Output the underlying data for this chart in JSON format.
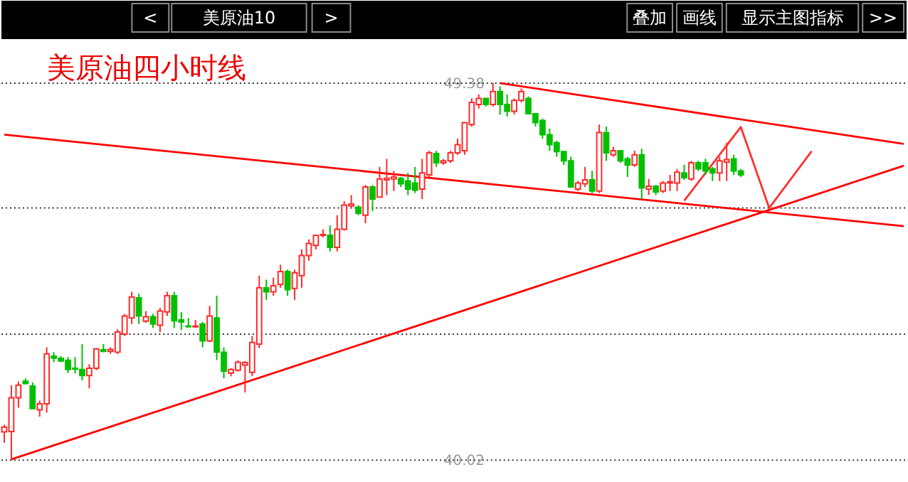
{
  "chart_data": {
    "type": "candlestick",
    "title": "美原油四小时线",
    "categories": [
      null,
      null,
      null,
      null,
      null,
      null,
      null,
      null,
      null,
      null,
      null,
      null,
      null,
      null,
      null,
      null,
      null,
      null,
      null,
      null,
      null,
      null,
      null,
      null,
      null,
      null,
      null,
      null,
      null,
      null,
      null,
      null,
      null,
      null,
      null,
      null,
      null,
      null,
      null,
      null,
      null,
      null,
      null,
      null,
      null,
      null,
      null,
      null,
      null,
      null,
      null,
      null,
      null,
      null,
      null,
      null,
      null,
      null,
      null,
      null,
      null,
      null,
      null,
      null,
      null,
      null,
      null,
      null,
      null,
      null,
      null,
      null,
      null,
      null,
      null,
      null,
      null,
      null,
      null,
      null,
      null,
      null,
      null,
      null,
      null,
      null,
      null,
      null,
      null,
      null,
      null,
      null,
      null,
      null,
      null,
      null,
      null,
      null,
      null,
      null,
      null,
      null,
      null,
      null,
      null,
      null,
      null,
      null,
      null,
      null,
      null,
      null,
      null,
      null,
      null,
      null,
      null,
      null,
      null,
      null,
      null,
      null,
      null,
      null,
      null,
      null,
      null,
      null
    ],
    "ohlc": [
      [
        40.72,
        40.9,
        40.45,
        40.84
      ],
      [
        40.73,
        41.88,
        40.02,
        41.57
      ],
      [
        41.57,
        41.97,
        41.32,
        41.88
      ],
      [
        41.98,
        42.05,
        41.9,
        41.92
      ],
      [
        41.86,
        41.95,
        41.3,
        41.3
      ],
      [
        41.27,
        41.5,
        41.1,
        41.42
      ],
      [
        41.42,
        42.82,
        41.2,
        42.66
      ],
      [
        42.6,
        42.7,
        42.45,
        42.55
      ],
      [
        42.55,
        42.6,
        42.45,
        42.48
      ],
      [
        42.5,
        42.58,
        42.18,
        42.27
      ],
      [
        42.3,
        42.58,
        42.17,
        42.28
      ],
      [
        42.27,
        42.9,
        42.0,
        42.12
      ],
      [
        42.12,
        42.4,
        41.8,
        42.3
      ],
      [
        42.3,
        42.8,
        42.25,
        42.78
      ],
      [
        42.76,
        42.9,
        42.7,
        42.72
      ],
      [
        42.72,
        42.82,
        42.66,
        42.77
      ],
      [
        42.7,
        43.27,
        42.65,
        43.2
      ],
      [
        43.15,
        43.65,
        43.1,
        43.6
      ],
      [
        43.55,
        44.2,
        43.4,
        44.07
      ],
      [
        44.05,
        44.15,
        43.4,
        43.6
      ],
      [
        43.47,
        43.72,
        43.43,
        43.58
      ],
      [
        43.58,
        43.65,
        43.3,
        43.4
      ],
      [
        43.37,
        43.8,
        43.2,
        43.72
      ],
      [
        43.7,
        44.2,
        43.6,
        44.1
      ],
      [
        44.1,
        44.2,
        43.3,
        43.48
      ],
      [
        43.5,
        43.7,
        43.25,
        43.45
      ],
      [
        43.35,
        43.55,
        43.32,
        43.33
      ],
      [
        43.33,
        43.5,
        43.3,
        43.35
      ],
      [
        43.4,
        43.45,
        42.82,
        42.98
      ],
      [
        42.98,
        43.85,
        42.95,
        43.6
      ],
      [
        43.55,
        44.1,
        42.5,
        42.7
      ],
      [
        42.7,
        42.82,
        42.05,
        42.23
      ],
      [
        42.18,
        42.3,
        42.1,
        42.27
      ],
      [
        42.25,
        42.5,
        42.22,
        42.45
      ],
      [
        42.38,
        42.48,
        41.7,
        42.44
      ],
      [
        42.2,
        43.1,
        42.1,
        42.94
      ],
      [
        42.9,
        44.6,
        42.8,
        44.3
      ],
      [
        44.3,
        44.5,
        44.0,
        44.2
      ],
      [
        44.2,
        44.55,
        44.1,
        44.35
      ],
      [
        44.38,
        44.87,
        44.3,
        44.7
      ],
      [
        44.7,
        44.75,
        44.1,
        44.25
      ],
      [
        44.28,
        44.75,
        44.0,
        44.67
      ],
      [
        44.6,
        45.25,
        44.3,
        45.1
      ],
      [
        45.1,
        45.5,
        44.97,
        45.4
      ],
      [
        45.35,
        45.6,
        45.25,
        45.6
      ],
      [
        45.6,
        45.75,
        45.55,
        45.62
      ],
      [
        45.6,
        45.85,
        45.2,
        45.3
      ],
      [
        45.3,
        46.1,
        45.2,
        45.75
      ],
      [
        45.75,
        46.45,
        45.72,
        46.35
      ],
      [
        46.33,
        46.6,
        46.3,
        46.38
      ],
      [
        46.3,
        46.35,
        46.1,
        46.15
      ],
      [
        46.1,
        46.85,
        45.9,
        46.8
      ],
      [
        46.8,
        46.85,
        46.2,
        46.5
      ],
      [
        46.55,
        47.3,
        46.55,
        47.0
      ],
      [
        46.98,
        47.5,
        46.6,
        47.02
      ],
      [
        47.0,
        47.2,
        46.7,
        47.05
      ],
      [
        47.02,
        47.05,
        46.8,
        46.88
      ],
      [
        46.95,
        47.15,
        46.6,
        46.75
      ],
      [
        46.9,
        47.3,
        46.65,
        46.72
      ],
      [
        46.75,
        47.5,
        46.5,
        47.15
      ],
      [
        47.1,
        47.7,
        47.05,
        47.65
      ],
      [
        47.63,
        47.7,
        47.3,
        47.4
      ],
      [
        47.4,
        47.5,
        47.35,
        47.45
      ],
      [
        47.45,
        47.7,
        47.4,
        47.65
      ],
      [
        47.65,
        48.0,
        47.6,
        47.85
      ],
      [
        47.7,
        48.4,
        47.6,
        48.4
      ],
      [
        48.35,
        49.0,
        48.3,
        48.9
      ],
      [
        48.85,
        49.1,
        48.75,
        49.0
      ],
      [
        49.0,
        49.0,
        48.8,
        48.85
      ],
      [
        48.85,
        49.38,
        48.8,
        49.17
      ],
      [
        49.17,
        49.3,
        48.6,
        48.85
      ],
      [
        48.85,
        49.1,
        48.55,
        48.68
      ],
      [
        48.68,
        49.0,
        48.6,
        48.95
      ],
      [
        48.95,
        49.25,
        48.9,
        49.17
      ],
      [
        49.0,
        49.05,
        48.6,
        48.62
      ],
      [
        48.62,
        48.62,
        48.3,
        48.4
      ],
      [
        48.45,
        48.5,
        48.0,
        48.1
      ],
      [
        48.1,
        48.25,
        47.7,
        47.85
      ],
      [
        47.9,
        47.95,
        47.55,
        47.68
      ],
      [
        47.68,
        47.7,
        47.35,
        47.45
      ],
      [
        47.45,
        47.55,
        46.8,
        46.8
      ],
      [
        46.75,
        46.95,
        46.7,
        46.9
      ],
      [
        46.88,
        47.3,
        46.8,
        46.98
      ],
      [
        46.98,
        47.2,
        46.65,
        46.7
      ],
      [
        46.7,
        48.35,
        46.65,
        48.15
      ],
      [
        48.15,
        48.3,
        47.45,
        47.65
      ],
      [
        47.6,
        47.8,
        47.55,
        47.7
      ],
      [
        47.7,
        47.7,
        47.4,
        47.45
      ],
      [
        47.5,
        47.55,
        47.05,
        47.35
      ],
      [
        47.35,
        47.7,
        47.3,
        47.6
      ],
      [
        47.6,
        47.75,
        46.5,
        46.78
      ],
      [
        46.75,
        47.0,
        46.6,
        46.82
      ],
      [
        46.82,
        46.85,
        46.6,
        46.68
      ],
      [
        46.7,
        46.95,
        46.65,
        46.9
      ],
      [
        46.9,
        47.1,
        46.7,
        46.93
      ],
      [
        46.9,
        47.25,
        46.7,
        47.17
      ],
      [
        47.15,
        47.35,
        46.98,
        47.03
      ],
      [
        47.0,
        47.45,
        46.95,
        47.4
      ],
      [
        47.4,
        47.45,
        47.2,
        47.25
      ],
      [
        47.4,
        47.5,
        47.1,
        47.2
      ],
      [
        47.25,
        47.3,
        46.95,
        47.15
      ],
      [
        47.15,
        47.55,
        46.95,
        47.45
      ],
      [
        47.42,
        47.9,
        46.95,
        47.48
      ],
      [
        47.5,
        47.6,
        47.1,
        47.2
      ],
      [
        47.2,
        47.25,
        47.05,
        47.1
      ],
      null,
      null,
      null,
      null,
      null,
      null,
      null,
      null,
      null,
      null,
      null,
      null,
      null,
      null,
      null,
      null,
      null,
      null,
      null,
      null,
      null,
      null,
      null
    ],
    "series": [
      {
        "type": "line",
        "color": "#ff0000",
        "values": [
          null,
          null,
          null,
          null,
          null,
          null,
          null,
          null,
          null,
          null,
          null,
          null,
          null,
          null,
          null,
          null,
          null,
          null,
          null,
          null,
          null,
          null,
          null,
          null,
          null,
          null,
          null,
          null,
          null,
          null,
          null,
          null,
          null,
          null,
          null,
          null,
          null,
          null,
          null,
          null,
          null,
          null,
          null,
          null,
          null,
          null,
          null,
          null,
          null,
          null,
          null,
          null,
          null,
          null,
          null,
          null,
          null,
          null,
          null,
          null,
          null,
          null,
          null,
          null,
          null,
          null,
          null,
          null,
          null,
          null,
          49.38,
          null,
          null,
          null,
          null,
          null,
          null,
          null,
          null,
          null,
          null,
          null,
          null,
          null,
          null,
          null,
          null,
          null,
          null,
          null,
          null,
          null,
          null,
          null,
          null,
          null,
          null,
          null,
          null,
          null,
          null,
          null,
          null,
          null,
          null,
          null,
          null,
          null,
          null,
          null,
          null,
          null,
          null,
          null,
          null,
          null,
          null,
          null,
          null,
          null,
          null,
          null,
          null,
          null,
          null,
          null,
          null,
          47.87
        ]
      },
      {
        "type": "line",
        "color": "#ff0000",
        "values": [
          48.1,
          null,
          null,
          null,
          null,
          null,
          null,
          null,
          null,
          null,
          null,
          null,
          null,
          null,
          null,
          null,
          null,
          null,
          null,
          null,
          null,
          null,
          null,
          null,
          null,
          null,
          null,
          null,
          null,
          null,
          null,
          null,
          null,
          null,
          null,
          null,
          null,
          null,
          null,
          null,
          null,
          null,
          null,
          null,
          null,
          null,
          null,
          null,
          null,
          null,
          null,
          null,
          null,
          null,
          null,
          null,
          null,
          null,
          null,
          null,
          null,
          null,
          null,
          null,
          null,
          null,
          null,
          null,
          null,
          null,
          null,
          null,
          null,
          null,
          null,
          null,
          null,
          null,
          null,
          null,
          null,
          null,
          null,
          null,
          null,
          null,
          null,
          null,
          null,
          null,
          null,
          null,
          null,
          null,
          null,
          null,
          null,
          null,
          null,
          null,
          null,
          null,
          null,
          null,
          null,
          null,
          null,
          null,
          null,
          null,
          null,
          null,
          null,
          null,
          null,
          null,
          null,
          null,
          null,
          null,
          null,
          null,
          null,
          null,
          null,
          null,
          null,
          45.83
        ]
      },
      {
        "type": "line",
        "color": "#ff0000",
        "values": [
          null,
          40.04,
          null,
          null,
          null,
          null,
          null,
          null,
          null,
          null,
          null,
          null,
          null,
          null,
          null,
          null,
          null,
          null,
          null,
          null,
          null,
          null,
          null,
          null,
          null,
          null,
          null,
          null,
          null,
          null,
          null,
          null,
          null,
          null,
          null,
          null,
          null,
          null,
          null,
          null,
          null,
          null,
          null,
          null,
          null,
          null,
          null,
          null,
          null,
          null,
          null,
          null,
          null,
          null,
          null,
          null,
          null,
          null,
          null,
          null,
          null,
          null,
          null,
          null,
          null,
          null,
          null,
          null,
          null,
          null,
          null,
          null,
          null,
          null,
          null,
          null,
          null,
          null,
          null,
          null,
          null,
          null,
          null,
          null,
          null,
          null,
          null,
          null,
          null,
          null,
          null,
          null,
          null,
          null,
          null,
          null,
          null,
          null,
          null,
          null,
          null,
          null,
          null,
          null,
          null,
          null,
          null,
          null,
          null,
          null,
          null,
          null,
          null,
          null,
          null,
          null,
          null,
          null,
          null,
          null,
          null,
          null,
          null,
          null,
          null,
          null,
          null,
          47.33
        ]
      },
      {
        "type": "line",
        "color": "#ff3030",
        "values": [
          null,
          null,
          null,
          null,
          null,
          null,
          null,
          null,
          null,
          null,
          null,
          null,
          null,
          null,
          null,
          null,
          null,
          null,
          null,
          null,
          null,
          null,
          null,
          null,
          null,
          null,
          null,
          null,
          null,
          null,
          null,
          null,
          null,
          null,
          null,
          null,
          null,
          null,
          null,
          null,
          null,
          null,
          null,
          null,
          null,
          null,
          null,
          null,
          null,
          null,
          null,
          null,
          null,
          null,
          null,
          null,
          null,
          null,
          null,
          null,
          null,
          null,
          null,
          null,
          null,
          null,
          null,
          null,
          null,
          null,
          null,
          null,
          null,
          null,
          null,
          null,
          null,
          null,
          null,
          null,
          null,
          null,
          null,
          null,
          null,
          null,
          null,
          null,
          null,
          null,
          null,
          null,
          null,
          null,
          null,
          null,
          46.46,
          null,
          null,
          null,
          null,
          null,
          null,
          null,
          48.29,
          null,
          null,
          null,
          46.28,
          null,
          null,
          null,
          null,
          null,
          47.69,
          null,
          null,
          null,
          null,
          null,
          null,
          null,
          null,
          null,
          null,
          null,
          null,
          null
        ]
      }
    ],
    "ylim": [
      39.46,
      50.51
    ],
    "yticks": [
      {
        "value": 49.38,
        "label": "49.38"
      },
      {
        "value": 46.28,
        "label": null
      },
      {
        "value": 43.15,
        "label": null
      },
      {
        "value": 40.02,
        "label": "40.02"
      }
    ],
    "grid": "y",
    "annotations": [
      "<",
      "美原油10",
      ">",
      "叠加",
      "画线",
      "显示主图指标",
      ">>"
    ]
  }
}
